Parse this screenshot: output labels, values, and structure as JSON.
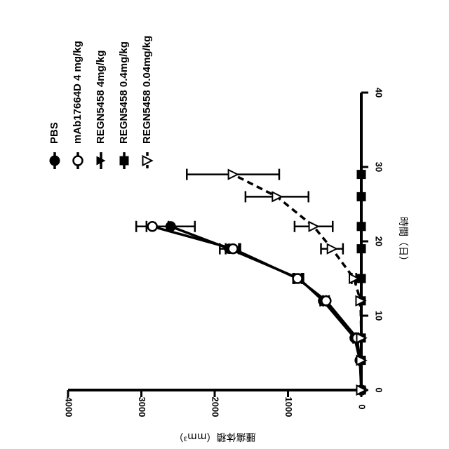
{
  "chart_data": {
    "type": "line",
    "orientation": "rotated 90 degrees clockwise",
    "xlabel": "時間（日）",
    "ylabel": "腫瘍体積（mm³）",
    "xlim": [
      0,
      40
    ],
    "ylim": [
      0,
      4000
    ],
    "x_ticks": [
      "0",
      "10",
      "20",
      "30",
      "40"
    ],
    "y_ticks": [
      "0",
      "1000",
      "2000",
      "3000",
      "4000"
    ],
    "grid": false,
    "legend_position": "top-left",
    "series": [
      {
        "name": "PBS",
        "marker": "filled-circle",
        "line": "solid",
        "color": "#000000",
        "x": [
          0,
          4,
          7,
          12,
          15,
          19,
          22
        ],
        "y": [
          0,
          20,
          90,
          520,
          850,
          1800,
          2600
        ],
        "err": [
          0,
          10,
          20,
          40,
          60,
          130,
          330
        ]
      },
      {
        "name": "mAb17664D 4 mg/kg",
        "marker": "open-circle",
        "line": "solid",
        "color": "#000000",
        "x": [
          0,
          4,
          7,
          12,
          15,
          19,
          22
        ],
        "y": [
          0,
          15,
          60,
          480,
          870,
          1750,
          2850
        ],
        "err": [
          0,
          10,
          20,
          40,
          60,
          100,
          220
        ]
      },
      {
        "name": "REGN5458 4mg/kg",
        "marker": "filled-triangle",
        "line": "solid",
        "color": "#000000",
        "x": [
          0,
          4,
          7,
          12,
          15,
          19,
          22,
          26,
          29
        ],
        "y": [
          0,
          0,
          0,
          0,
          0,
          0,
          0,
          0,
          0
        ],
        "err": [
          0,
          0,
          0,
          0,
          0,
          0,
          0,
          0,
          0
        ]
      },
      {
        "name": "REGN5458 0.4mg/kg",
        "marker": "filled-square",
        "line": "solid",
        "color": "#000000",
        "x": [
          0,
          4,
          7,
          12,
          15,
          19,
          22,
          26,
          29
        ],
        "y": [
          0,
          0,
          0,
          0,
          0,
          0,
          0,
          0,
          0
        ],
        "err": [
          0,
          0,
          0,
          0,
          0,
          0,
          0,
          0,
          0
        ]
      },
      {
        "name": "REGN5458 0.04mg/kg",
        "marker": "open-triangle",
        "line": "dashed",
        "color": "#000000",
        "x": [
          0,
          4,
          7,
          12,
          15,
          19,
          22,
          26,
          29
        ],
        "y": [
          0,
          0,
          0,
          10,
          100,
          400,
          650,
          1150,
          1750
        ],
        "err": [
          0,
          0,
          0,
          10,
          30,
          150,
          260,
          430,
          630
        ]
      }
    ]
  }
}
